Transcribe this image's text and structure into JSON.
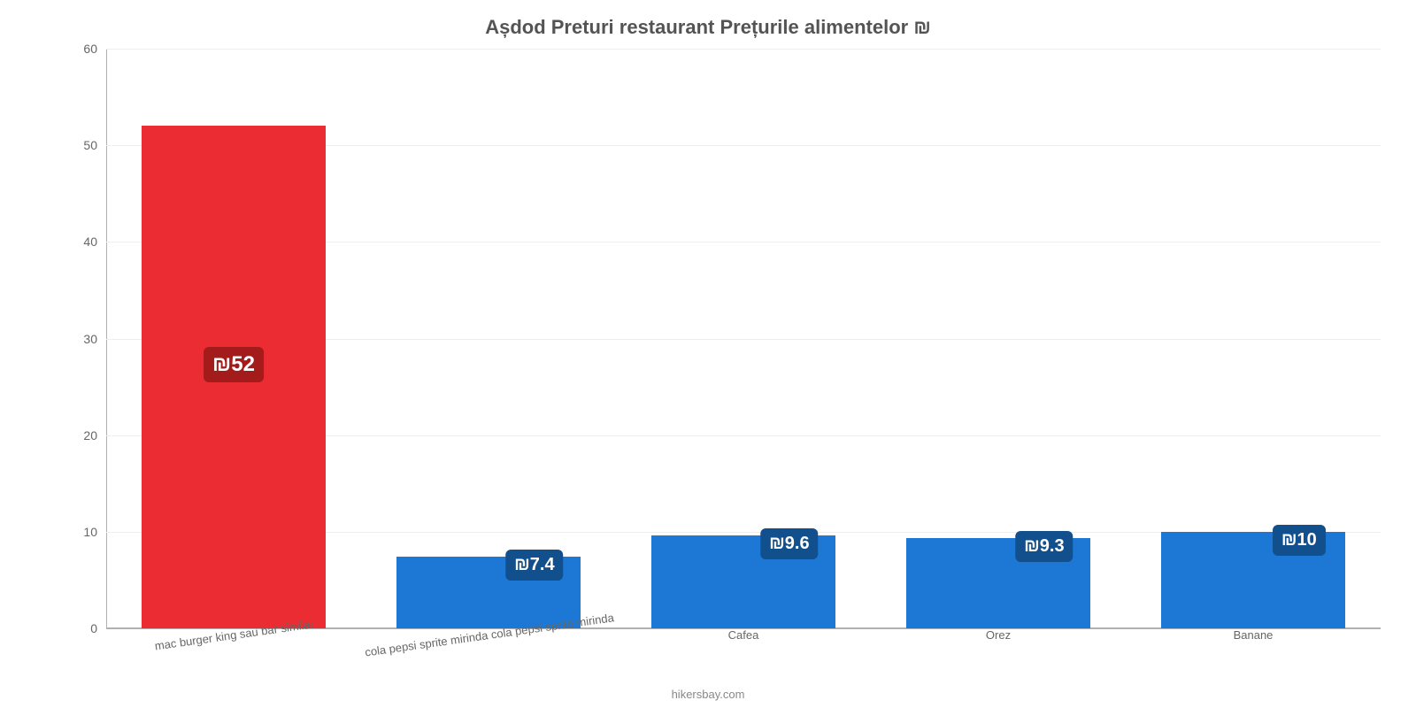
{
  "chart": {
    "type": "bar",
    "title": "Așdod Preturi restaurant Prețurile alimentelor ₪",
    "title_fontsize": 22,
    "title_color": "#545454",
    "background_color": "#ffffff",
    "ylim": [
      0,
      60
    ],
    "yticks": [
      0,
      10,
      20,
      30,
      40,
      50,
      60
    ],
    "grid_color": "#eeeeee",
    "grid_color_zero": "#b0b0b0",
    "axis_label_color": "#666666",
    "axis_label_fontsize": 14,
    "bar_width_pct": 72,
    "bars": [
      {
        "category": "mac burger king sau bar similar",
        "value": 52,
        "label": "₪52",
        "bar_color": "#eb2c32",
        "label_bg": "#a41b1b",
        "label_fontsize": 24,
        "x_label_rotation": -8
      },
      {
        "category": "cola pepsi sprite mirinda cola pepsi sprite mirinda",
        "value": 7.4,
        "label": "₪7.4",
        "bar_color": "#1c78d4",
        "label_bg": "#12508d",
        "label_fontsize": 20,
        "x_label_rotation": -8
      },
      {
        "category": "Cafea",
        "value": 9.6,
        "label": "₪9.6",
        "bar_color": "#1c78d4",
        "label_bg": "#12508d",
        "label_fontsize": 20,
        "x_label_rotation": 0
      },
      {
        "category": "Orez",
        "value": 9.3,
        "label": "₪9.3",
        "bar_color": "#1c78d4",
        "label_bg": "#12508d",
        "label_fontsize": 20,
        "x_label_rotation": 0
      },
      {
        "category": "Banane",
        "value": 10,
        "label": "₪10",
        "bar_color": "#1c78d4",
        "label_bg": "#12508d",
        "label_fontsize": 20,
        "x_label_rotation": 0
      }
    ],
    "x_label_fontsize": 13,
    "footer": "hikersbay.com",
    "footer_color": "#888888"
  }
}
